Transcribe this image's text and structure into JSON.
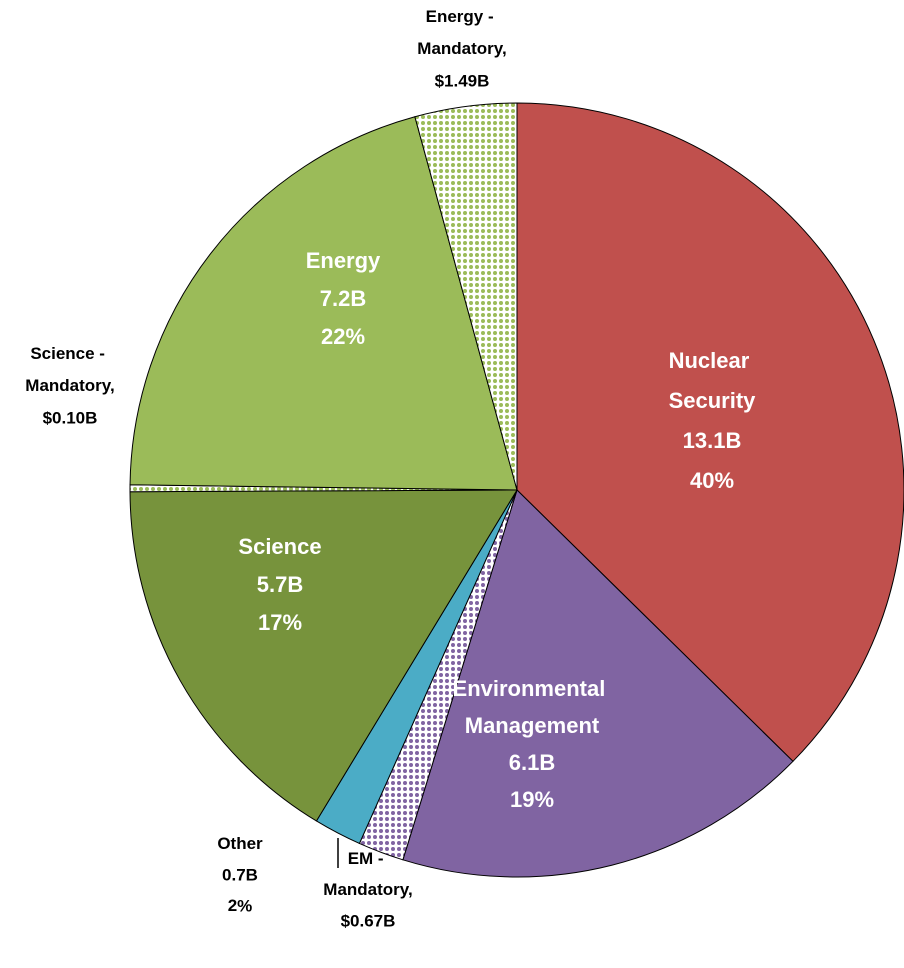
{
  "chart_data": {
    "type": "pie",
    "categories": [
      "Nuclear Security",
      "Environmental Management",
      "EM - Mandatory,",
      "Other",
      "Science",
      "Science - Mandatory,",
      "Energy",
      "Energy - Mandatory,"
    ],
    "values": [
      13.1,
      6.1,
      0.67,
      0.7,
      5.7,
      0.1,
      7.2,
      1.49
    ],
    "value_labels": [
      "13.1B",
      "6.1B",
      "$0.67B",
      "0.7B",
      "5.7B",
      "$0.10B",
      "7.2B",
      "$1.49B"
    ],
    "percents": [
      40,
      19,
      null,
      2,
      17,
      null,
      22,
      null
    ],
    "colors": [
      "#c0504d",
      "#8064a2",
      "#8064a2",
      "#4bacc6",
      "#77933c",
      "#9bbb59",
      "#9bbb59",
      "#9bbb59"
    ],
    "hatched": [
      false,
      false,
      true,
      false,
      false,
      true,
      false,
      true
    ]
  }
}
